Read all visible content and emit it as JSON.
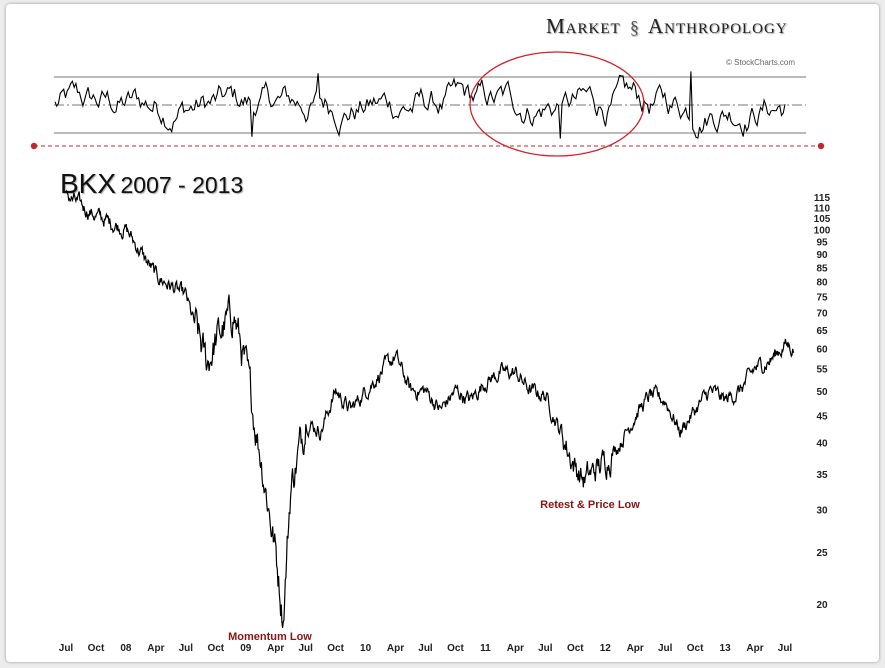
{
  "brand": {
    "left": "Market",
    "right": "Anthropology"
  },
  "watermark": "© StockCharts.com",
  "title": {
    "symbol": "BKX",
    "years": "2007 - 2013"
  },
  "annotations": {
    "momentum_low": "Momentum Low",
    "retest_low": "Retest & Price Low"
  },
  "colors": {
    "line": "#000000",
    "circle": "#d2232a",
    "dashed": "#c0282d",
    "annotation": "#8b1414"
  },
  "chart_data": {
    "type": "line",
    "scale": "log",
    "xlabels": [
      "Jul",
      "Oct",
      "08",
      "Apr",
      "Jul",
      "Oct",
      "09",
      "Apr",
      "Jul",
      "Oct",
      "10",
      "Apr",
      "Jul",
      "Oct",
      "11",
      "Apr",
      "Jul",
      "Oct",
      "12",
      "Apr",
      "Jul",
      "Oct",
      "13",
      "Apr",
      "Jul"
    ],
    "yticks": [
      115,
      110,
      105,
      100,
      95,
      90,
      85,
      80,
      75,
      70,
      65,
      60,
      55,
      50,
      45,
      40,
      35,
      30,
      25,
      20
    ],
    "ylim": [
      17,
      118
    ],
    "price_anchors": [
      [
        0,
        116
      ],
      [
        1,
        106
      ],
      [
        2,
        100
      ],
      [
        3,
        82
      ],
      [
        4,
        75
      ],
      [
        4.7,
        56
      ],
      [
        5,
        62
      ],
      [
        5.6,
        70
      ],
      [
        6,
        55
      ],
      [
        6.5,
        38
      ],
      [
        7,
        25
      ],
      [
        7.25,
        19
      ],
      [
        7.5,
        33
      ],
      [
        8,
        44
      ],
      [
        8.5,
        42
      ],
      [
        9,
        50
      ],
      [
        9.5,
        46
      ],
      [
        10,
        50
      ],
      [
        10.5,
        54
      ],
      [
        11,
        58
      ],
      [
        11.5,
        50
      ],
      [
        12,
        50
      ],
      [
        12.5,
        46
      ],
      [
        13,
        50
      ],
      [
        13.5,
        48
      ],
      [
        14,
        52
      ],
      [
        14.5,
        54
      ],
      [
        15,
        54
      ],
      [
        15.5,
        50
      ],
      [
        16,
        49
      ],
      [
        16.5,
        42
      ],
      [
        17,
        36
      ],
      [
        17.3,
        34
      ],
      [
        18,
        37
      ],
      [
        18.5,
        40
      ],
      [
        19,
        45
      ],
      [
        19.5,
        49
      ],
      [
        20,
        48
      ],
      [
        20.5,
        42
      ],
      [
        21,
        46
      ],
      [
        21.5,
        50
      ],
      [
        22,
        48
      ],
      [
        22.5,
        50
      ],
      [
        23,
        55
      ],
      [
        23.5,
        57
      ],
      [
        24,
        61
      ],
      [
        24.3,
        60
      ]
    ],
    "momentum_upper": 80,
    "momentum_lower": 20,
    "momentum_mid": 50
  }
}
